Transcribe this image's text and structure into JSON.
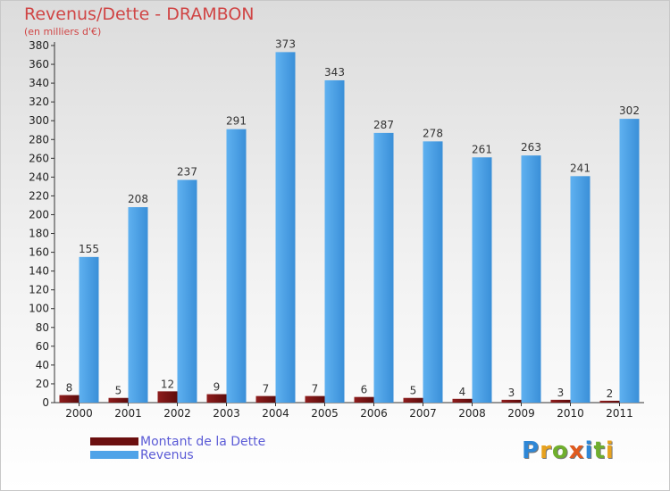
{
  "header": {
    "title": "Revenus/Dette - DRAMBON",
    "subtitle": "(en milliers d'€)"
  },
  "legend": {
    "debt_label": "Montant de la Dette",
    "revenue_label": "Revenus"
  },
  "brand": {
    "text": "Proxiti"
  },
  "colors": {
    "title": "#d04545",
    "debt": "#7a1212",
    "revenue": "#4fa3e8",
    "legend_text": "#5b5bd6"
  },
  "chart_data": {
    "type": "bar",
    "title": "Revenus/Dette - DRAMBON",
    "ylabel": "(en milliers d'€)",
    "xlabel": "",
    "categories": [
      "2000",
      "2001",
      "2002",
      "2003",
      "2004",
      "2005",
      "2006",
      "2007",
      "2008",
      "2009",
      "2010",
      "2011"
    ],
    "series": [
      {
        "name": "Montant de la Dette",
        "values": [
          8,
          5,
          12,
          9,
          7,
          7,
          6,
          5,
          4,
          3,
          3,
          2
        ]
      },
      {
        "name": "Revenus",
        "values": [
          155,
          208,
          237,
          291,
          373,
          343,
          287,
          278,
          261,
          263,
          241,
          302
        ]
      }
    ],
    "ylim": [
      0,
      380
    ],
    "ytick_step": 20,
    "grid": false,
    "legend": "bottom-left"
  }
}
